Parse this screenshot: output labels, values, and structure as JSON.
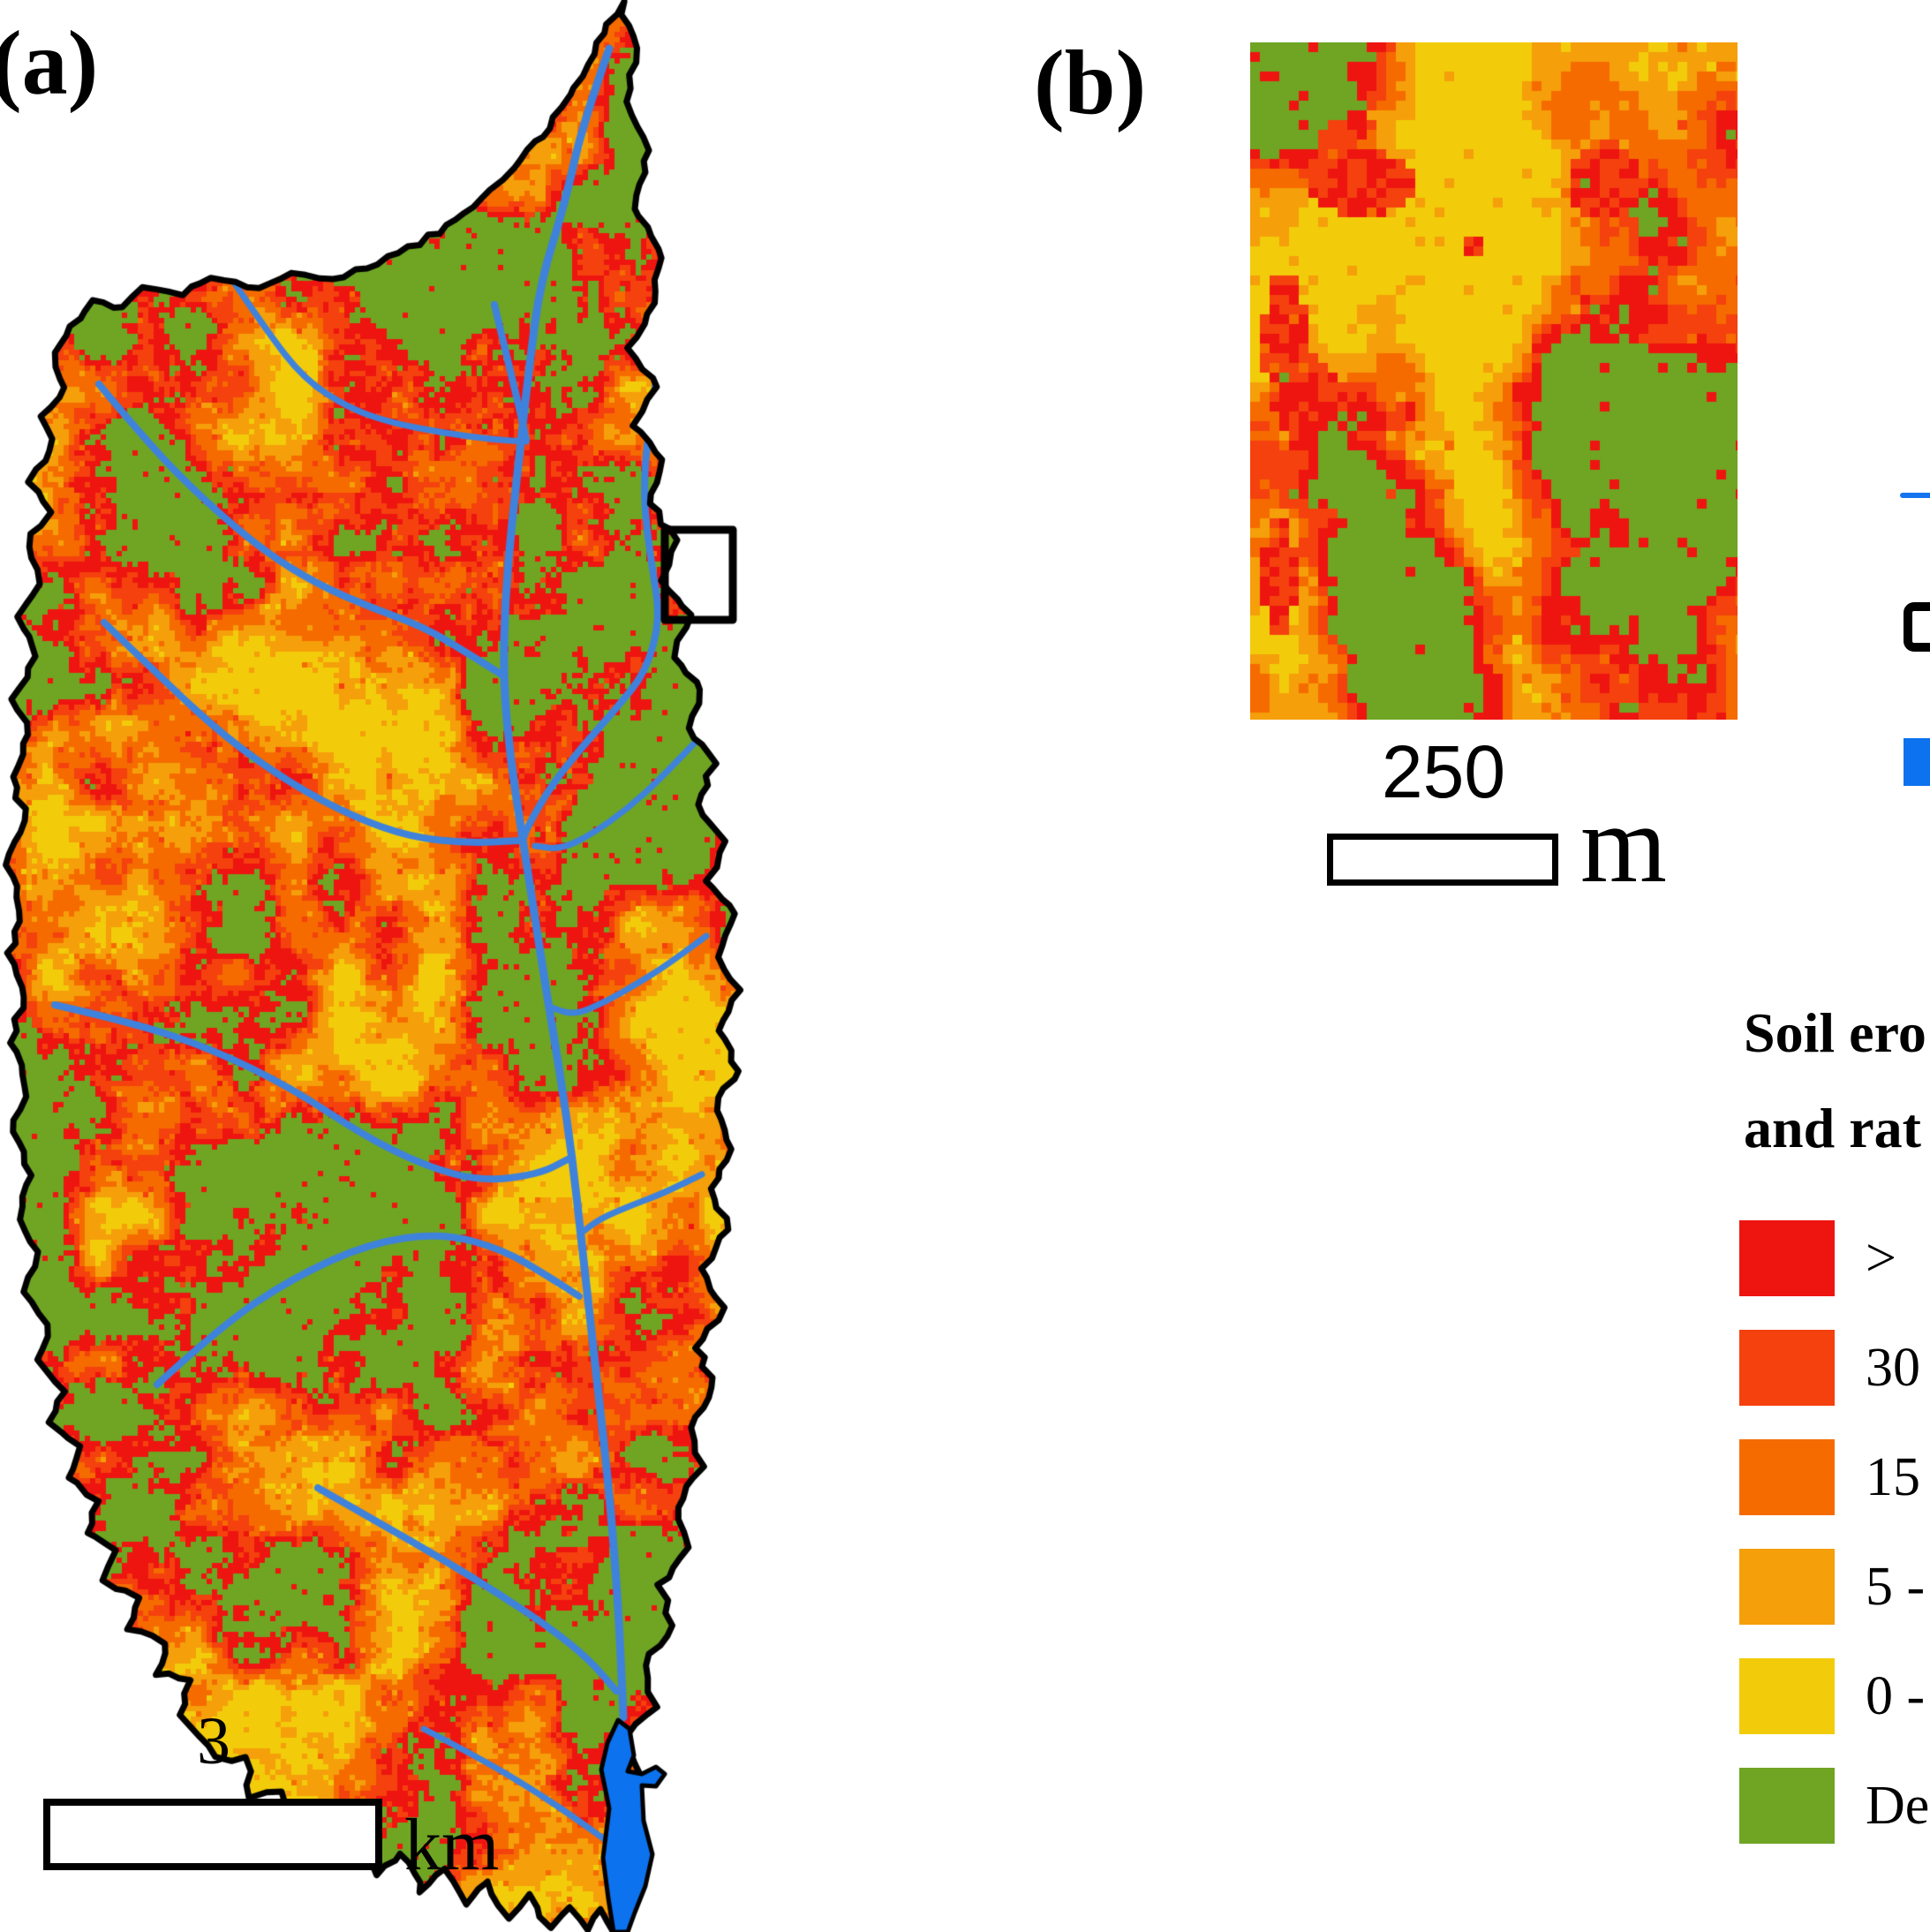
{
  "figure": {
    "panel_a": {
      "label": "(a)",
      "scalebar": {
        "value": "3",
        "unit": "km"
      }
    },
    "panel_b": {
      "label": "(b)",
      "scalebar": {
        "value": "250",
        "unit": "m"
      }
    },
    "legend": {
      "title_line1": "Soil ero",
      "title_line2": "and rat",
      "river_symbol_color": "#1474ee",
      "water_symbol_color": "#0c72ee",
      "extent_symbol_color": "#000000",
      "classes": [
        {
          "label": ">",
          "color": "#ee1511"
        },
        {
          "label": "30",
          "color": "#f4410e"
        },
        {
          "label": "15",
          "color": "#f56b00"
        },
        {
          "label": "5 -",
          "color": "#f59f0a"
        },
        {
          "label": "0 -",
          "color": "#f2cc0a"
        },
        {
          "label": "De",
          "color": "#6fa523"
        }
      ]
    },
    "map_colors": {
      "red": "#ee1511",
      "red_orange": "#f4410e",
      "dark_orange": "#f56b00",
      "light_orange": "#f59f0a",
      "yellow": "#f2cc0a",
      "green": "#6fa523",
      "stream": "#3f82dc",
      "water": "#0c72ee",
      "boundary": "#000000"
    }
  }
}
